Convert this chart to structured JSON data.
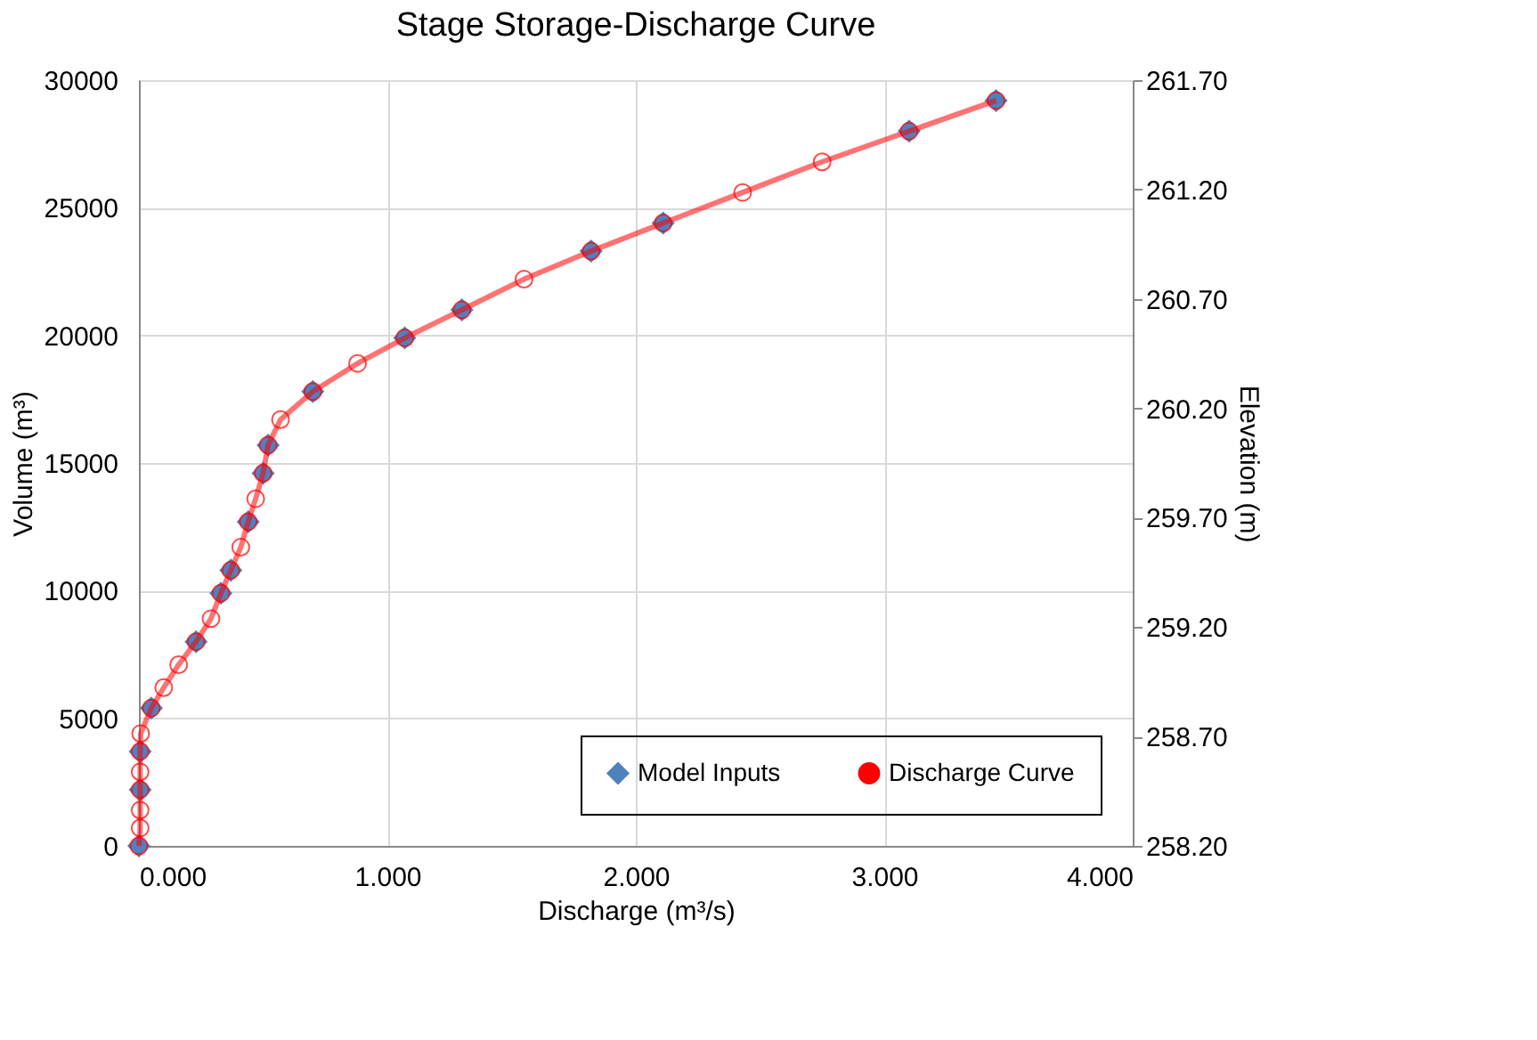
{
  "chart_data": {
    "type": "scatter",
    "title": "Stage Storage-Discharge Curve",
    "xlabel": "Discharge (m³/s)",
    "ylabel": "Volume (m³)",
    "y2label": "Elevation (m)",
    "xlim": [
      0,
      4
    ],
    "xticks": [
      {
        "value": 0,
        "label": "0.000"
      },
      {
        "value": 1,
        "label": "1.000"
      },
      {
        "value": 2,
        "label": "2.000"
      },
      {
        "value": 3,
        "label": "3.000"
      },
      {
        "value": 4,
        "label": "4.000"
      }
    ],
    "ylim": [
      0,
      30000
    ],
    "yticks": [
      0,
      5000,
      10000,
      15000,
      20000,
      25000,
      30000
    ],
    "y2lim": [
      258.2,
      261.7
    ],
    "y2ticks": [
      {
        "value": 258.2,
        "label": "258.20"
      },
      {
        "value": 258.7,
        "label": "258.70"
      },
      {
        "value": 259.2,
        "label": "259.20"
      },
      {
        "value": 259.7,
        "label": "259.70"
      },
      {
        "value": 260.2,
        "label": "260.20"
      },
      {
        "value": 260.7,
        "label": "260.70"
      },
      {
        "value": 261.2,
        "label": "261.20"
      },
      {
        "value": 261.7,
        "label": "261.70"
      }
    ],
    "grid": true,
    "legend": "bottom right",
    "series": [
      {
        "name": "Model Inputs",
        "marker": "diamond",
        "color": "#4f81bd",
        "x": [
          0,
          0.005,
          0.005,
          0.05,
          0.23,
          0.33,
          0.37,
          0.44,
          0.5,
          0.52,
          0.7,
          1.07,
          1.3,
          1.82,
          2.11,
          3.1,
          3.45
        ],
        "values": [
          0,
          2200,
          3700,
          5400,
          8000,
          9900,
          10800,
          12700,
          14600,
          15700,
          17800,
          19900,
          21000,
          23300,
          24400,
          28000,
          29200
        ]
      },
      {
        "name": "Discharge Curve",
        "type": "line",
        "marker": "circle",
        "color": "#ff0000",
        "x": [
          0,
          0.005,
          0.005,
          0.005,
          0.005,
          0.005,
          0.007,
          0.05,
          0.1,
          0.16,
          0.23,
          0.29,
          0.33,
          0.37,
          0.41,
          0.44,
          0.47,
          0.5,
          0.52,
          0.57,
          0.7,
          0.88,
          1.07,
          1.3,
          1.55,
          1.82,
          2.11,
          2.43,
          2.75,
          3.1,
          3.45
        ],
        "values": [
          0,
          700,
          1400,
          2200,
          2900,
          3700,
          4400,
          5400,
          6200,
          7100,
          8000,
          8900,
          9900,
          10800,
          11700,
          12700,
          13600,
          14600,
          15700,
          16700,
          17800,
          18900,
          19900,
          21000,
          22200,
          23300,
          24400,
          25600,
          26800,
          28000,
          29200
        ]
      }
    ]
  }
}
